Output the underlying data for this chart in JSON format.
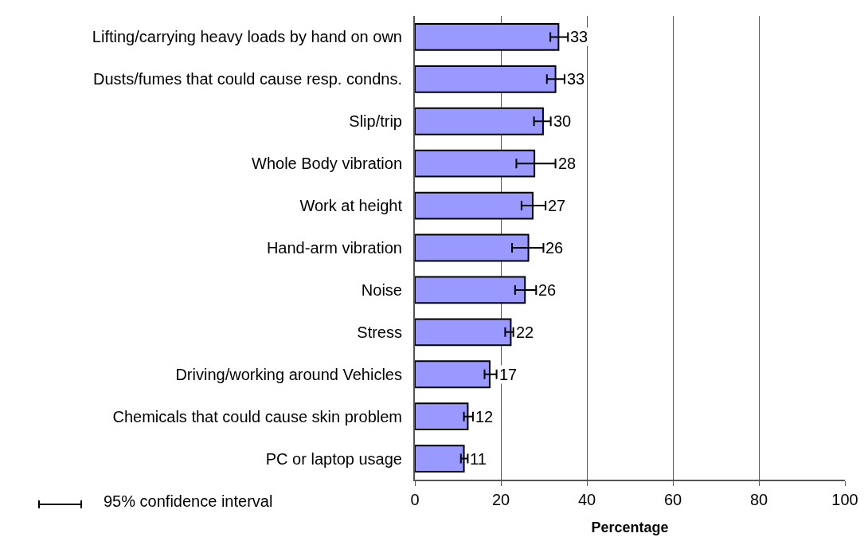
{
  "chart_data": {
    "type": "bar",
    "orientation": "horizontal",
    "categories": [
      "Lifting/carrying heavy loads by hand on own",
      "Dusts/fumes that could cause resp. condns.",
      "Slip/trip",
      "Whole Body vibration",
      "Work at height",
      "Hand-arm vibration",
      "Noise",
      "Stress",
      "Driving/working around Vehicles",
      "Chemicals that could cause skin problem",
      "PC or laptop usage"
    ],
    "values": [
      33.4,
      32.7,
      29.8,
      27.8,
      27.4,
      26.4,
      25.6,
      22.3,
      17.4,
      12.3,
      11.4
    ],
    "value_labels": [
      "33",
      "33",
      "30",
      "28",
      "27",
      "26",
      "26",
      "22",
      "17",
      "12",
      "11"
    ],
    "errors": [
      [
        31.5,
        35.6
      ],
      [
        30.7,
        34.8
      ],
      [
        27.7,
        31.6
      ],
      [
        23.6,
        32.7
      ],
      [
        24.8,
        30.4
      ],
      [
        22.6,
        29.9
      ],
      [
        23.3,
        28.2
      ],
      [
        21.0,
        22.9
      ],
      [
        16.2,
        19.0
      ],
      [
        11.4,
        13.5
      ],
      [
        10.7,
        12.3
      ]
    ],
    "color": "#9999ff",
    "xlim": [
      0,
      100
    ],
    "xticks": [
      0,
      20,
      40,
      60,
      80,
      100
    ],
    "xlabel": "Percentage",
    "grid": "x",
    "annotations": [
      "95% confidence interval"
    ]
  }
}
